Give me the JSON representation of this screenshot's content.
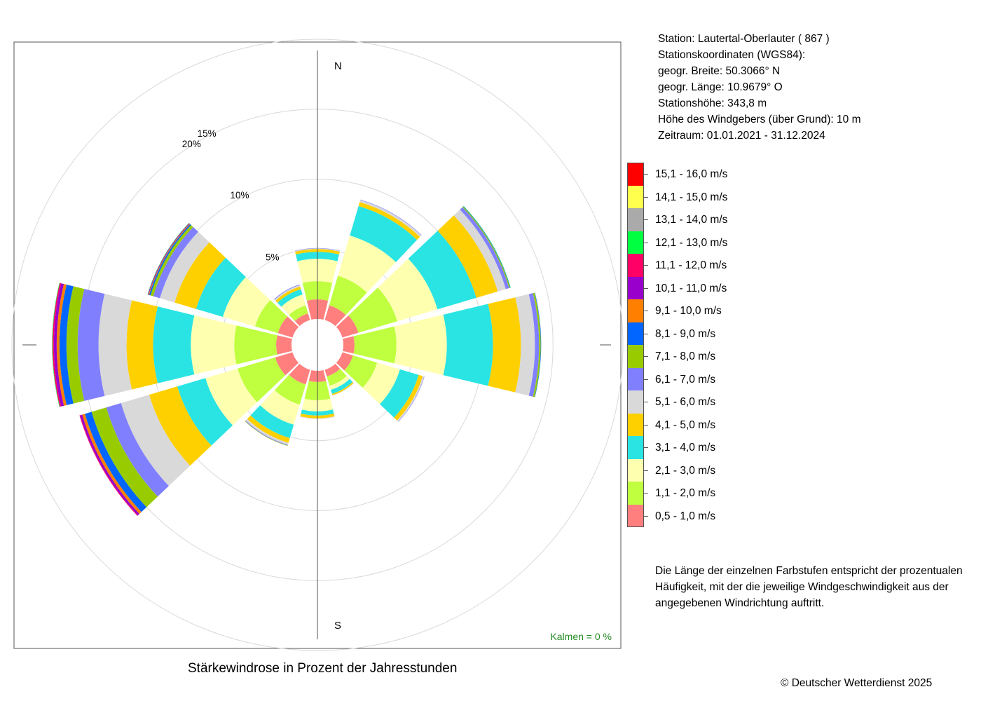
{
  "station": {
    "lines": [
      "Station:  Lautertal-Oberlauter  ( 867 )",
      "Stationskoordinaten (WGS84):",
      "geogr. Breite: 50.3066° N",
      "geogr. Länge: 10.9679° O",
      "Stationshöhe: 343,8 m",
      "Höhe des Windgebers (über Grund): 10 m",
      "Zeitraum: 01.01.2021 - 31.12.2024"
    ]
  },
  "note": {
    "lines": [
      "Die Länge der einzelnen Farbstufen entspricht der prozentualen",
      "Häufigkeit, mit der die jeweilige Windgeschwindigkeit aus der",
      "angegebenen Windrichtung auftritt."
    ]
  },
  "caption": "Stärkewindrose in Prozent der Jahresstunden",
  "copyright": "© Deutscher Wetterdienst  2025",
  "calms_label": "Kalmen  =  0 %",
  "colors": {
    "calms_label": "#228b22",
    "grid": "#d9d9d9",
    "axis": "#555555"
  },
  "chart_data": {
    "type": "wind_rose",
    "title": "Stärkewindrose in Prozent der Jahresstunden",
    "directions_deg": [
      0,
      30,
      60,
      90,
      120,
      150,
      180,
      210,
      240,
      270,
      300,
      330
    ],
    "direction_labels": {
      "N": "N",
      "S": "S"
    },
    "radial_ticks": [
      5,
      10,
      15,
      20
    ],
    "radial_tick_labels": [
      "5%",
      "10%",
      "15%",
      "20%"
    ],
    "rmax": 20,
    "speed_classes": [
      {
        "label": "0,5 - 1,0 m/s",
        "color": "#ff7f7f"
      },
      {
        "label": "1,1 - 2,0 m/s",
        "color": "#bfff3f"
      },
      {
        "label": "2,1 - 3,0 m/s",
        "color": "#ffffb0"
      },
      {
        "label": "3,1 - 4,0 m/s",
        "color": "#2ae4e4"
      },
      {
        "label": "4,1 - 5,0 m/s",
        "color": "#ffd000"
      },
      {
        "label": "5,1 - 6,0 m/s",
        "color": "#d9d9d9"
      },
      {
        "label": "6,1 - 7,0 m/s",
        "color": "#8080ff"
      },
      {
        "label": "7,1 - 8,0 m/s",
        "color": "#99cc00"
      },
      {
        "label": "8,1 - 9,0 m/s",
        "color": "#0066ff"
      },
      {
        "label": "9,1 - 10,0 m/s",
        "color": "#ff8000"
      },
      {
        "label": "10,1 - 11,0 m/s",
        "color": "#9900cc"
      },
      {
        "label": "11,1 - 12,0 m/s",
        "color": "#ff0066"
      },
      {
        "label": "12,1 - 13,0 m/s",
        "color": "#00ff40"
      },
      {
        "label": "13,1 - 14,0 m/s",
        "color": "#aaaaaa"
      },
      {
        "label": "14,1 - 15,0 m/s",
        "color": "#ffff4d"
      },
      {
        "label": "15,1 - 16,0 m/s",
        "color": "#ff0000"
      }
    ],
    "frequencies_percent": [
      [
        1.4,
        1.3,
        1.6,
        0.5,
        0.2,
        0.05,
        0.02,
        0.0,
        0.0,
        0.0,
        0.0,
        0.0,
        0.0,
        0.0,
        0.0,
        0.0
      ],
      [
        1.1,
        2.2,
        3.0,
        2.2,
        0.3,
        0.15,
        0.03,
        0.0,
        0.0,
        0.0,
        0.0,
        0.0,
        0.0,
        0.0,
        0.0,
        0.0
      ],
      [
        1.2,
        2.9,
        3.0,
        2.9,
        1.6,
        0.6,
        0.25,
        0.07,
        0.03,
        0.0,
        0.0,
        0.0,
        0.02,
        0.0,
        0.0,
        0.0
      ],
      [
        0.8,
        3.0,
        3.6,
        3.3,
        2.0,
        1.0,
        0.3,
        0.12,
        0.03,
        0.0,
        0.0,
        0.0,
        0.0,
        0.0,
        0.0,
        0.0
      ],
      [
        0.8,
        1.8,
        1.7,
        1.4,
        0.3,
        0.1,
        0.03,
        0.0,
        0.0,
        0.0,
        0.0,
        0.0,
        0.0,
        0.0,
        0.0,
        0.0
      ],
      [
        0.5,
        0.7,
        0.3,
        0.3,
        0.1,
        0.03,
        0.0,
        0.0,
        0.0,
        0.0,
        0.0,
        0.0,
        0.0,
        0.0,
        0.0,
        0.0
      ],
      [
        0.8,
        1.3,
        0.8,
        0.3,
        0.2,
        0.05,
        0.0,
        0.0,
        0.0,
        0.0,
        0.0,
        0.0,
        0.0,
        0.0,
        0.0,
        0.0
      ],
      [
        1.1,
        1.5,
        1.5,
        1.0,
        0.35,
        0.15,
        0.05,
        0.03,
        0.0,
        0.0,
        0.0,
        0.0,
        0.0,
        0.0,
        0.0,
        0.0
      ],
      [
        1.3,
        2.8,
        2.4,
        2.1,
        2.1,
        2.1,
        1.1,
        1.1,
        0.5,
        0.2,
        0.15,
        0.05,
        0.0,
        0.0,
        0.0,
        0.0
      ],
      [
        1.1,
        3.0,
        3.1,
        2.7,
        1.9,
        2.0,
        1.5,
        0.8,
        0.5,
        0.2,
        0.2,
        0.1,
        0.03,
        0.0,
        0.0,
        0.0
      ],
      [
        1.1,
        1.7,
        2.4,
        2.0,
        1.6,
        1.1,
        0.5,
        0.2,
        0.1,
        0.05,
        0.05,
        0.0,
        0.02,
        0.0,
        0.0,
        0.0
      ],
      [
        0.5,
        0.6,
        0.8,
        0.4,
        0.2,
        0.1,
        0.05,
        0.0,
        0.0,
        0.0,
        0.0,
        0.0,
        0.0,
        0.0,
        0.0,
        0.0
      ]
    ],
    "calms_percent": 0
  }
}
